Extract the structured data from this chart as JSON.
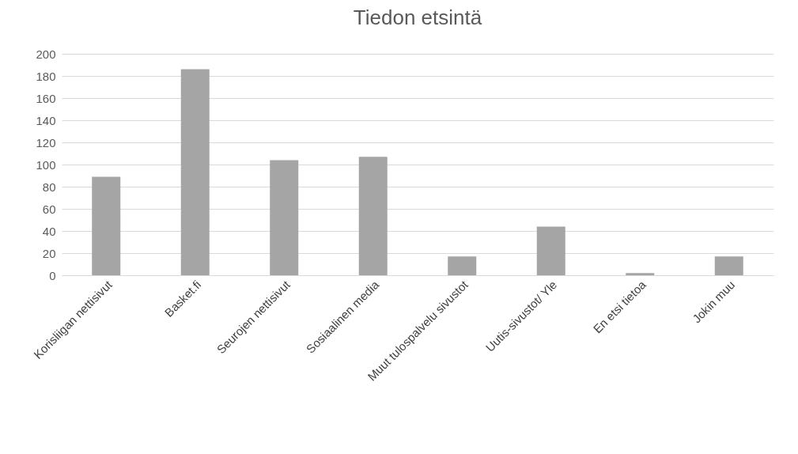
{
  "chart_data": {
    "type": "bar",
    "title": "Tiedon etsintä",
    "categories": [
      "Korisliigan nettisivut",
      "Basket.fi",
      "Seurojen nettisivut",
      "Sosiaalinen media",
      "Muut tulospalvelu sivustot",
      "Uutis-sivustot/ Yle",
      "En etsi tietoa",
      "Jokin muu"
    ],
    "values": [
      89,
      186,
      104,
      107,
      17,
      44,
      2,
      17
    ],
    "color": "#a5a5a5",
    "ylim": [
      0,
      200
    ],
    "yticks": [
      0,
      20,
      40,
      60,
      80,
      100,
      120,
      140,
      160,
      180,
      200
    ],
    "grid": "y"
  }
}
